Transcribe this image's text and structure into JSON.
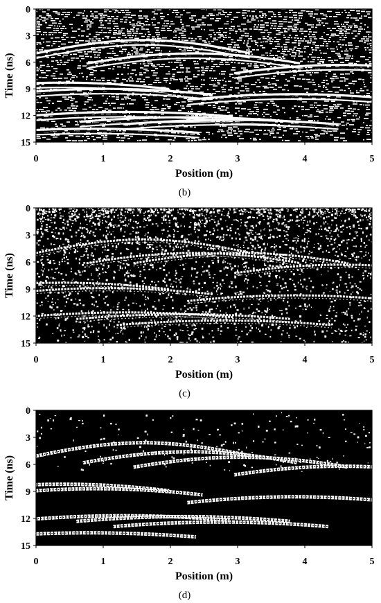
{
  "panels": [
    {
      "label": "(b)",
      "processing": "raw",
      "chart_data": {
        "type": "heatmap",
        "title": "",
        "xlabel": "Position (m)",
        "ylabel": "Time (ns)",
        "xlim": [
          0,
          5
        ],
        "ylim": [
          15,
          0
        ],
        "xticks": [
          "0",
          "1",
          "2",
          "3",
          "4",
          "5"
        ],
        "yticks": [
          "0",
          "3",
          "6",
          "9",
          "12",
          "15"
        ],
        "hyperbolas": [
          {
            "x": 1.6,
            "t": 3.5
          },
          {
            "x": 2.35,
            "t": 5.0
          },
          {
            "x": 4.55,
            "t": 6.3
          },
          {
            "x": 0.4,
            "t": 8.3
          },
          {
            "x": 1.05,
            "t": 9.0
          },
          {
            "x": 3.85,
            "t": 9.6
          },
          {
            "x": 1.35,
            "t": 11.6
          },
          {
            "x": 2.25,
            "t": 12.2
          },
          {
            "x": 0.85,
            "t": 13.5
          },
          {
            "x": 2.9,
            "t": 12.5
          }
        ]
      }
    },
    {
      "label": "(c)",
      "processing": "sparse",
      "chart_data": {
        "type": "heatmap",
        "title": "",
        "xlabel": "Position (m)",
        "ylabel": "Time (ns)",
        "xlim": [
          0,
          5
        ],
        "ylim": [
          15,
          0
        ],
        "xticks": [
          "0",
          "1",
          "2",
          "3",
          "4",
          "5"
        ],
        "yticks": [
          "0",
          "3",
          "6",
          "9",
          "12",
          "15"
        ],
        "hyperbolas": [
          {
            "x": 1.6,
            "t": 3.5
          },
          {
            "x": 2.35,
            "t": 5.0
          },
          {
            "x": 3.05,
            "t": 5.0
          },
          {
            "x": 4.55,
            "t": 6.3
          },
          {
            "x": 0.4,
            "t": 8.3
          },
          {
            "x": 1.05,
            "t": 8.9
          },
          {
            "x": 3.85,
            "t": 9.7
          },
          {
            "x": 1.35,
            "t": 11.6
          },
          {
            "x": 2.2,
            "t": 11.8
          },
          {
            "x": 2.8,
            "t": 12.5
          }
        ]
      }
    },
    {
      "label": "(d)",
      "processing": "clean",
      "chart_data": {
        "type": "heatmap",
        "title": "",
        "xlabel": "Position (m)",
        "ylabel": "Time (ns)",
        "xlim": [
          0,
          5
        ],
        "ylim": [
          15,
          0
        ],
        "xticks": [
          "0",
          "1",
          "2",
          "3",
          "4",
          "5"
        ],
        "yticks": [
          "0",
          "3",
          "6",
          "9",
          "12",
          "15"
        ],
        "hyperbolas": [
          {
            "x": 1.6,
            "t": 3.6
          },
          {
            "x": 2.3,
            "t": 4.6
          },
          {
            "x": 3.05,
            "t": 5.2
          },
          {
            "x": 4.55,
            "t": 6.2
          },
          {
            "x": 0.4,
            "t": 8.2
          },
          {
            "x": 0.9,
            "t": 8.7
          },
          {
            "x": 3.85,
            "t": 9.6
          },
          {
            "x": 1.3,
            "t": 11.7
          },
          {
            "x": 2.2,
            "t": 11.8
          },
          {
            "x": 2.75,
            "t": 12.4
          },
          {
            "x": 0.8,
            "t": 13.6
          }
        ]
      }
    }
  ],
  "colors": {
    "background": "#ffffff",
    "plot_background": "#000000",
    "reflection": "#ffffff",
    "axis": "#000000",
    "text": "#000000"
  }
}
